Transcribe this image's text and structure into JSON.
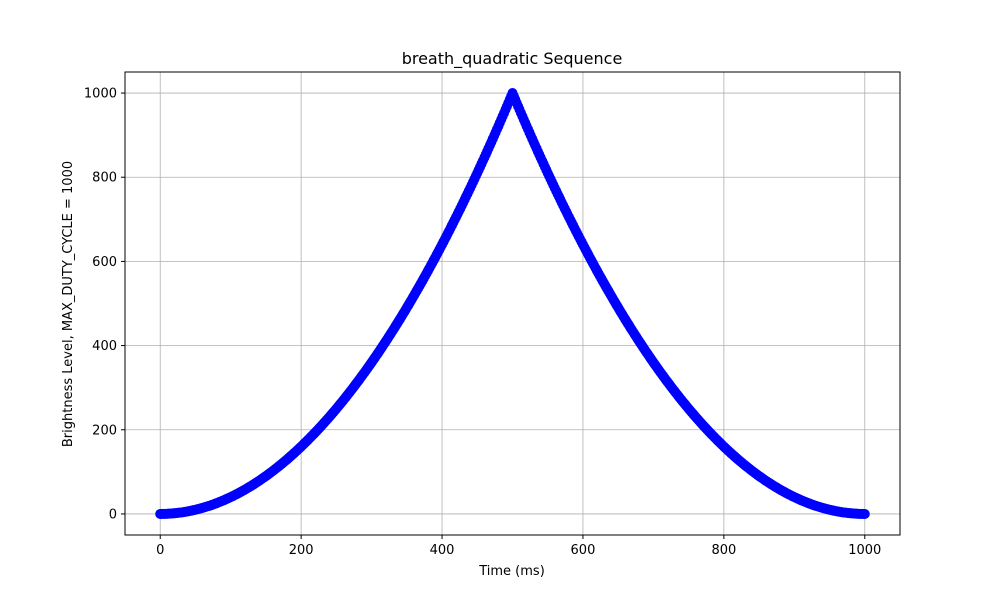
{
  "chart_data": {
    "type": "scatter",
    "title": "breath_quadratic Sequence",
    "xlabel": "Time (ms)",
    "ylabel": "Brightness Level, MAX_DUTY_CYCLE = 1000",
    "xlim": [
      -50,
      1050
    ],
    "ylim": [
      -50,
      1050
    ],
    "xticks": [
      0,
      200,
      400,
      600,
      800,
      1000
    ],
    "yticks": [
      0,
      200,
      400,
      600,
      800,
      1000
    ],
    "grid": true,
    "series": [
      {
        "color": "#0000ff",
        "marker": "circle",
        "x": [
          0,
          10,
          20,
          30,
          40,
          50,
          60,
          70,
          80,
          90,
          100,
          110,
          120,
          130,
          140,
          150,
          160,
          170,
          180,
          190,
          200,
          210,
          220,
          230,
          240,
          250,
          260,
          270,
          280,
          290,
          300,
          310,
          320,
          330,
          340,
          350,
          360,
          370,
          380,
          390,
          400,
          410,
          420,
          430,
          440,
          450,
          460,
          470,
          480,
          490,
          500,
          510,
          520,
          530,
          540,
          550,
          560,
          570,
          580,
          590,
          600,
          610,
          620,
          630,
          640,
          650,
          660,
          670,
          680,
          690,
          700,
          710,
          720,
          730,
          740,
          750,
          760,
          770,
          780,
          790,
          800,
          810,
          820,
          830,
          840,
          850,
          860,
          870,
          880,
          890,
          900,
          910,
          920,
          930,
          940,
          950,
          960,
          970,
          980,
          990,
          1000
        ],
        "y": [
          0,
          0.4,
          1.6,
          3.6,
          6.4,
          10,
          14.4,
          19.6,
          25.6,
          32.4,
          40,
          48.4,
          57.6,
          67.6,
          78.4,
          90,
          102.4,
          115.6,
          129.6,
          144.4,
          160,
          176.4,
          193.6,
          211.6,
          230.4,
          250,
          270.4,
          291.6,
          313.6,
          336.4,
          360,
          384.4,
          409.6,
          435.6,
          462.4,
          490,
          518.4,
          547.6,
          577.6,
          608.4,
          640,
          672.4,
          705.6,
          739.6,
          774.4,
          810,
          846.4,
          883.6,
          921.6,
          960.4,
          1000,
          960.4,
          921.6,
          883.6,
          846.4,
          810,
          774.4,
          739.6,
          705.6,
          672.4,
          640,
          608.4,
          577.6,
          547.6,
          518.4,
          490,
          462.4,
          435.6,
          409.6,
          384.4,
          360,
          336.4,
          313.6,
          291.6,
          270.4,
          250,
          230.4,
          211.6,
          193.6,
          176.4,
          160,
          144.4,
          129.6,
          115.6,
          102.4,
          90,
          78.4,
          67.6,
          57.6,
          48.4,
          40,
          32.4,
          25.6,
          19.6,
          14.4,
          10,
          6.4,
          3.6,
          1.6,
          0.4,
          0
        ]
      }
    ]
  }
}
